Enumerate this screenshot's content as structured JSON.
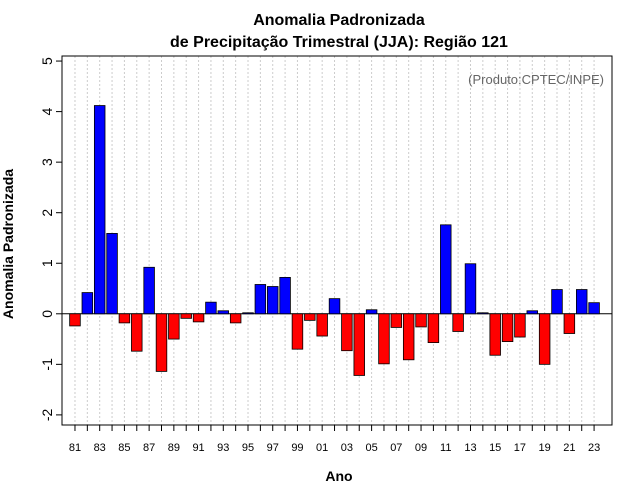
{
  "chart_data": {
    "type": "bar",
    "title": "Anomalia Padronizada",
    "subtitle": "de Precipitação Trimestral (JJA): Região 121",
    "xlabel": "Ano",
    "ylabel": "Anomalia Padronizada",
    "annotation": "(Produto:CPTEC/INPE)",
    "ylim": [
      -2.2,
      5.1
    ],
    "yticks": [
      -2,
      -1,
      0,
      1,
      2,
      3,
      4,
      5
    ],
    "grid": "vertical-dotted",
    "positive_color": "#0000ff",
    "negative_color": "#ff0000",
    "categories": [
      "1981",
      "1982",
      "1983",
      "1984",
      "1985",
      "1986",
      "1987",
      "1988",
      "1989",
      "1990",
      "1991",
      "1992",
      "1993",
      "1994",
      "1995",
      "1996",
      "1997",
      "1998",
      "1999",
      "2000",
      "2001",
      "2002",
      "2003",
      "2004",
      "2005",
      "2006",
      "2007",
      "2008",
      "2009",
      "2010",
      "2011",
      "2012",
      "2013",
      "2014",
      "2015",
      "2016",
      "2017",
      "2018",
      "2019",
      "2020",
      "2021",
      "2022",
      "2023"
    ],
    "xtick_labels": [
      "81",
      "83",
      "85",
      "87",
      "89",
      "91",
      "93",
      "95",
      "97",
      "99",
      "01",
      "03",
      "05",
      "07",
      "09",
      "11",
      "13",
      "15",
      "17",
      "19",
      "21",
      "23"
    ],
    "values": [
      -0.24,
      0.42,
      4.12,
      1.59,
      -0.18,
      -0.74,
      0.92,
      -1.14,
      -0.5,
      -0.09,
      -0.16,
      0.23,
      0.06,
      -0.18,
      0.02,
      0.58,
      0.54,
      0.72,
      -0.7,
      -0.13,
      -0.44,
      0.3,
      -0.73,
      -1.22,
      0.08,
      -0.99,
      -0.27,
      -0.91,
      -0.26,
      -0.57,
      1.76,
      -0.35,
      0.99,
      0.02,
      -0.82,
      -0.55,
      -0.46,
      0.06,
      -1.0,
      0.48,
      -0.39,
      0.48,
      0.22
    ]
  }
}
